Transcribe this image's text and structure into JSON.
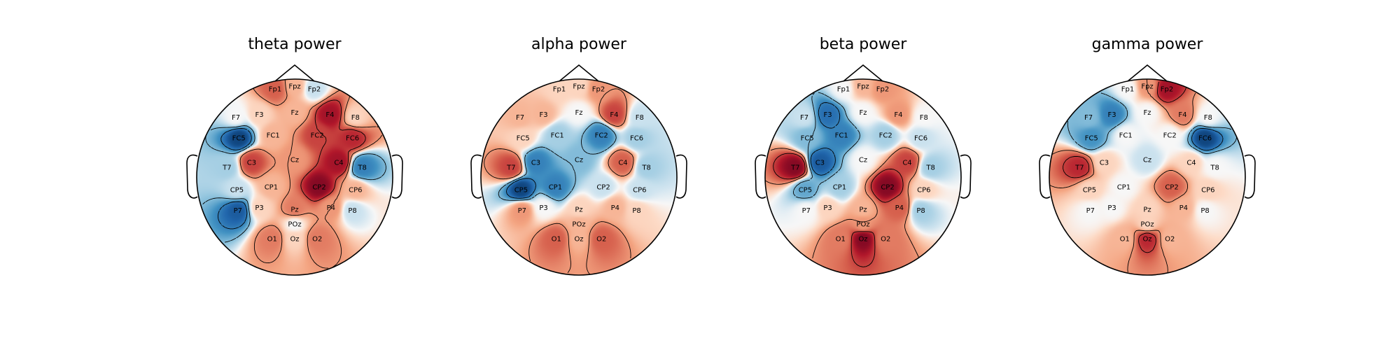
{
  "figure": {
    "background": "#ffffff",
    "colormap": "RdBu_r",
    "colors": {
      "positive": "#b2182b",
      "neutral": "#f7f7f7",
      "negative": "#2166ac"
    }
  },
  "channel_labels": {
    "Fp1": "Fp1",
    "Fpz": "Fpz",
    "Fp2": "Fp2",
    "F7": "F7",
    "F3": "F3",
    "Fz": "Fz",
    "F4": "F4",
    "F8": "F8",
    "FC5": "FC5",
    "FC1": "FC1",
    "FC2": "FC2",
    "FC6": "FC6",
    "T7": "T7",
    "C3": "C3",
    "Cz": "Cz",
    "C4": "C4",
    "T8": "T8",
    "CP5": "CP5",
    "CP1": "CP1",
    "CP2": "CP2",
    "CP6": "CP6",
    "P7": "P7",
    "P3": "P3",
    "Pz": "Pz",
    "P4": "P4",
    "P8": "P8",
    "POz": "POz",
    "O1": "O1",
    "Oz": "Oz",
    "O2": "O2"
  },
  "chart_data": [
    {
      "type": "heatmap",
      "title": "theta power",
      "values": {
        "Fp1": 0.5,
        "Fpz": 0.2,
        "Fp2": -0.1,
        "F7": 0.0,
        "F3": 0.1,
        "Fz": 0.2,
        "F4": 0.8,
        "F8": 0.1,
        "FC5": -0.9,
        "FC1": 0.2,
        "FC2": 0.6,
        "FC6": 0.7,
        "T7": -0.2,
        "C3": 0.6,
        "Cz": 0.3,
        "C4": 0.8,
        "T8": -0.6,
        "CP5": -0.1,
        "CP1": 0.2,
        "CP2": 0.9,
        "CP6": 0.2,
        "P7": -0.8,
        "P3": 0.1,
        "Pz": 0.4,
        "P4": 0.3,
        "P8": -0.1,
        "POz": 0.0,
        "O1": 0.4,
        "Oz": 0.1,
        "O2": 0.4
      }
    },
    {
      "type": "heatmap",
      "title": "alpha power",
      "values": {
        "Fp1": 0.1,
        "Fpz": 0.1,
        "Fp2": 0.3,
        "F7": 0.2,
        "F3": 0.2,
        "Fz": 0.0,
        "F4": 0.6,
        "F8": -0.1,
        "FC5": 0.1,
        "FC1": -0.2,
        "FC2": -0.6,
        "FC6": -0.2,
        "T7": 0.6,
        "C3": -0.6,
        "Cz": -0.3,
        "C4": 0.5,
        "T8": -0.2,
        "CP5": -0.9,
        "CP1": -0.6,
        "CP2": -0.1,
        "CP6": -0.1,
        "P7": 0.3,
        "P3": 0.0,
        "Pz": 0.1,
        "P4": 0.2,
        "P8": 0.1,
        "POz": 0.2,
        "O1": 0.5,
        "Oz": 0.2,
        "O2": 0.5
      }
    },
    {
      "type": "heatmap",
      "title": "beta power",
      "values": {
        "Fp1": 0.0,
        "Fpz": 0.2,
        "Fp2": 0.3,
        "F7": -0.1,
        "F3": -0.7,
        "Fz": 0.0,
        "F4": 0.3,
        "F8": 0.0,
        "FC5": -0.3,
        "FC1": -0.6,
        "FC2": -0.2,
        "FC6": -0.1,
        "T7": 0.9,
        "C3": -0.8,
        "Cz": 0.0,
        "C4": 0.6,
        "T8": -0.2,
        "CP5": -0.4,
        "CP1": -0.2,
        "CP2": 0.9,
        "CP6": 0.1,
        "P7": 0.0,
        "P3": 0.1,
        "Pz": 0.2,
        "P4": 0.5,
        "P8": -0.2,
        "POz": 0.3,
        "O1": 0.4,
        "Oz": 0.9,
        "O2": 0.4
      }
    },
    {
      "type": "heatmap",
      "title": "gamma power",
      "values": {
        "Fp1": 0.0,
        "Fpz": 0.3,
        "Fp2": 0.8,
        "F7": -0.3,
        "F3": -0.6,
        "Fz": 0.0,
        "F4": 0.4,
        "F8": 0.0,
        "FC5": -0.5,
        "FC1": 0.0,
        "FC2": 0.0,
        "FC6": -0.9,
        "T7": 0.7,
        "C3": 0.1,
        "Cz": -0.1,
        "C4": 0.1,
        "T8": 0.0,
        "CP5": 0.1,
        "CP1": 0.0,
        "CP2": 0.5,
        "CP6": 0.1,
        "P7": 0.0,
        "P3": 0.0,
        "Pz": 0.1,
        "P4": 0.2,
        "P8": 0.0,
        "POz": 0.1,
        "O1": 0.2,
        "Oz": 0.7,
        "O2": 0.2
      }
    }
  ]
}
